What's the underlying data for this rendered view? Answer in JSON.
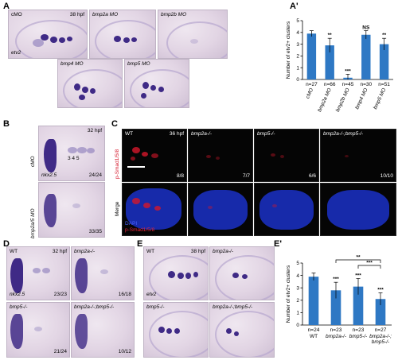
{
  "panels": {
    "A": {
      "letter": "A",
      "stage": "38 hpf",
      "gene": "etv2",
      "labels": [
        "cMO",
        "bmp2a MO",
        "bmp2b MO",
        "bmp4 MO",
        "bmp5 MO"
      ]
    },
    "A_prime": {
      "letter": "A'"
    },
    "B": {
      "letter": "B",
      "stage": "32 hpf",
      "gene": "nkx2.5",
      "row1_side": "cMO",
      "row2_side": "bmp2a/5 MO",
      "numbers": "3 4 5",
      "count1": "24/24",
      "count2": "33/35"
    },
    "C": {
      "letter": "C",
      "stage": "36 hpf",
      "labels": [
        "WT",
        "bmp2a-/-",
        "bmp5-/-",
        "bmp2a-/-;bmp5-/-"
      ],
      "counts": [
        "8/8",
        "7/7",
        "6/6",
        "10/10"
      ],
      "row1_side": "p-Smad1/5/8",
      "row2_side": "Merge",
      "legend_dapi": "DAPI",
      "legend_psmad": "p-Smad1/5/8"
    },
    "D": {
      "letter": "D",
      "stage": "32 hpf",
      "gene": "nkx2.5",
      "labels": [
        "WT",
        "bmp2a-/-",
        "bmp5-/-",
        "bmp2a-/-;bmp5-/-"
      ],
      "counts": [
        "23/23",
        "16/18",
        "21/24",
        "10/12"
      ]
    },
    "E": {
      "letter": "E",
      "stage": "38 hpf",
      "gene": "etv2",
      "labels": [
        "WT",
        "bmp2a-/-",
        "bmp5-/-",
        "bmp2a-/-;bmp5-/-"
      ]
    },
    "E_prime": {
      "letter": "E'"
    }
  },
  "chart_data": [
    {
      "type": "bar",
      "panel": "A'",
      "ylabel": "Number of etv2+ clusters",
      "ylim": [
        0,
        5
      ],
      "yticks": [
        0,
        1,
        2,
        3,
        4,
        5
      ],
      "categories": [
        "cMO",
        "bmp2a MO",
        "bmp2b MO",
        "bmp4 MO",
        "bmp5 MO"
      ],
      "values": [
        3.9,
        2.9,
        0.15,
        3.8,
        3.0
      ],
      "errors": [
        0.25,
        0.6,
        0.3,
        0.35,
        0.5
      ],
      "n": [
        "n=27",
        "n=66",
        "n=45",
        "n=30",
        "n=51"
      ],
      "significance": [
        "",
        "**",
        "***",
        "NS",
        "**"
      ],
      "color": "#2e78c4"
    },
    {
      "type": "bar",
      "panel": "E'",
      "ylabel": "Number of etv2+ clusters",
      "ylim": [
        0,
        5
      ],
      "yticks": [
        0,
        1,
        2,
        3,
        4,
        5
      ],
      "categories": [
        "WT",
        "bmp2a-/-",
        "bmp5-/-",
        "bmp2a-/-; bmp5-/-"
      ],
      "values": [
        3.9,
        2.8,
        3.1,
        2.1
      ],
      "errors": [
        0.3,
        0.65,
        0.65,
        0.5
      ],
      "n": [
        "n=24",
        "n=23",
        "n=23",
        "n=27"
      ],
      "significance": [
        "",
        "***",
        "***",
        "***"
      ],
      "brackets": [
        {
          "from": 1,
          "to": 3,
          "label": "**"
        },
        {
          "from": 2,
          "to": 3,
          "label": "***"
        }
      ],
      "color": "#2e78c4"
    }
  ]
}
